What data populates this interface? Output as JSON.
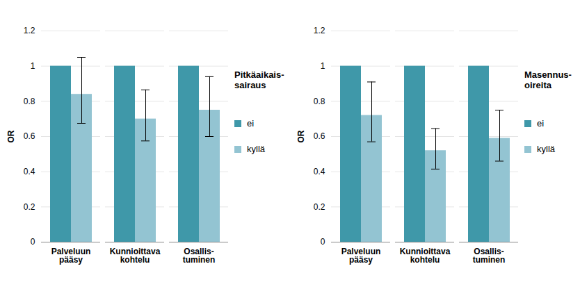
{
  "chart_data": [
    {
      "type": "bar",
      "legend_title": "Pitkäaikais-sairaus",
      "legend": "right",
      "y_label": "OR",
      "categories": [
        "Palveluun pääsy",
        "Kunnioittava kohtelu",
        "Osallis-tuminen"
      ],
      "series": [
        {
          "name": "ei",
          "color": "#3f98a9",
          "values": [
            1,
            1,
            1
          ]
        },
        {
          "name": "kyllä",
          "color": "#93c4d2",
          "values": [
            0.84,
            0.7,
            0.75
          ],
          "error_low": [
            0.675,
            0.575,
            0.6
          ],
          "error_high": [
            1.05,
            0.865,
            0.94
          ]
        }
      ],
      "ylim": [
        0,
        1.2
      ],
      "yticks": [
        0,
        0.2,
        0.4,
        0.6,
        0.8,
        1,
        1.2
      ],
      "grid": true
    },
    {
      "type": "bar",
      "legend_title": "Masennus-oireita",
      "legend": "right",
      "y_label": "OR",
      "categories": [
        "Palveluun pääsy",
        "Kunnioittava kohtelu",
        "Osallis-tuminen"
      ],
      "series": [
        {
          "name": "ei",
          "color": "#3f98a9",
          "values": [
            1,
            1,
            1
          ]
        },
        {
          "name": "kyllä",
          "color": "#93c4d2",
          "values": [
            0.72,
            0.52,
            0.59
          ],
          "error_low": [
            0.57,
            0.415,
            0.46
          ],
          "error_high": [
            0.91,
            0.645,
            0.75
          ]
        }
      ],
      "ylim": [
        0,
        1.2
      ],
      "yticks": [
        0,
        0.2,
        0.4,
        0.6,
        0.8,
        1,
        1.2
      ],
      "grid": true
    }
  ]
}
